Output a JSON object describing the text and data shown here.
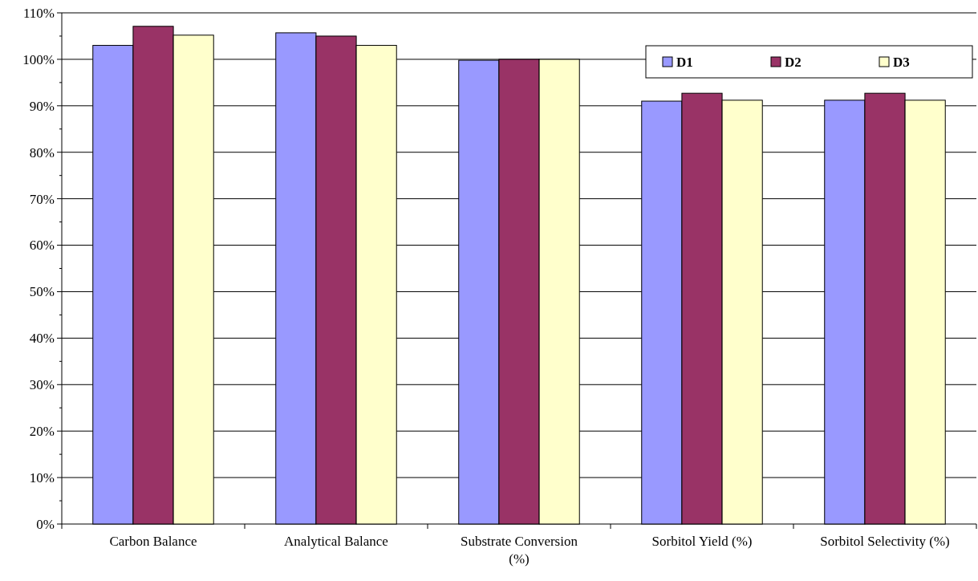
{
  "chart_data": {
    "type": "bar",
    "categories": [
      "Carbon Balance",
      "Analytical Balance",
      "Substrate Conversion (%)",
      "Sorbitol Yield (%)",
      "Sorbitol Selectivity (%)"
    ],
    "series": [
      {
        "name": "D1",
        "color": "#9999ff",
        "values": [
          103,
          105.7,
          99.8,
          91,
          91.2
        ]
      },
      {
        "name": "D2",
        "color": "#993366",
        "values": [
          107.1,
          105,
          100,
          92.7,
          92.7
        ]
      },
      {
        "name": "D3",
        "color": "#ffffcc",
        "values": [
          105.2,
          103,
          100,
          91.2,
          91.2
        ]
      }
    ],
    "ylim": [
      0,
      110
    ],
    "yticks": [
      {
        "value": 0,
        "label": "0%"
      },
      {
        "value": 5,
        "label": null
      },
      {
        "value": 10,
        "label": "10%"
      },
      {
        "value": 15,
        "label": null
      },
      {
        "value": 20,
        "label": "20%"
      },
      {
        "value": 25,
        "label": null
      },
      {
        "value": 30,
        "label": "30%"
      },
      {
        "value": 35,
        "label": null
      },
      {
        "value": 40,
        "label": "40%"
      },
      {
        "value": 45,
        "label": null
      },
      {
        "value": 50,
        "label": "50%"
      },
      {
        "value": 55,
        "label": null
      },
      {
        "value": 60,
        "label": "60%"
      },
      {
        "value": 65,
        "label": null
      },
      {
        "value": 70,
        "label": "70%"
      },
      {
        "value": 75,
        "label": null
      },
      {
        "value": 80,
        "label": "80%"
      },
      {
        "value": 85,
        "label": null
      },
      {
        "value": 90,
        "label": "90%"
      },
      {
        "value": 95,
        "label": null
      },
      {
        "value": 100,
        "label": "100%"
      },
      {
        "value": 105,
        "label": null
      },
      {
        "value": 110,
        "label": "110%"
      }
    ],
    "grid": "y",
    "legend": "top right"
  }
}
